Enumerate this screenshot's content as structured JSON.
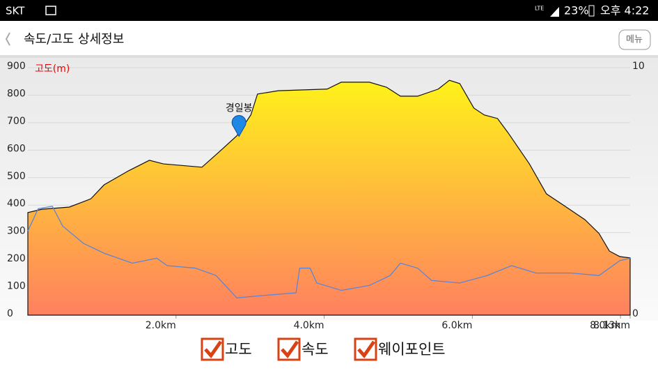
{
  "status_bar": {
    "carrier": "SKT",
    "network": "LTE",
    "battery": "23%",
    "time": "오후 4:22"
  },
  "header": {
    "title": "속도/고도 상세정보",
    "menu": "메뉴"
  },
  "chart_data": {
    "type": "area",
    "ylabel": "고도(m)",
    "xlim": [
      0,
      8.13
    ],
    "xticks": [
      {
        "value": 2,
        "label": "2.0km"
      },
      {
        "value": 4,
        "label": "4.0km"
      },
      {
        "value": 6,
        "label": "6.0km"
      },
      {
        "value": 8,
        "label": "8.0km"
      },
      {
        "value": 8.13,
        "label": "8.13km"
      }
    ],
    "ylim": [
      0,
      900
    ],
    "yticks": [
      0,
      100,
      200,
      300,
      400,
      500,
      600,
      700,
      800,
      900
    ],
    "y2lim": [
      0,
      10
    ],
    "y2ticks": [
      0,
      10
    ],
    "grid": true,
    "series": [
      {
        "name": "고도",
        "type": "area",
        "color": "#fff21a",
        "color2": "#ff8060",
        "x": [
          0,
          0.19,
          0.56,
          0.85,
          1.03,
          1.36,
          1.64,
          1.83,
          2.35,
          2.58,
          2.82,
          3.01,
          3.1,
          3.38,
          4.04,
          4.23,
          4.61,
          4.84,
          5.03,
          5.26,
          5.54,
          5.69,
          5.83,
          6.02,
          6.16,
          6.34,
          6.48,
          6.77,
          7.0,
          7.24,
          7.52,
          7.71,
          7.85,
          7.99,
          8.13
        ],
        "values": [
          373,
          385,
          393,
          423,
          474,
          525,
          563,
          550,
          538,
          593,
          652,
          728,
          804,
          816,
          822,
          847,
          847,
          829,
          796,
          796,
          822,
          854,
          842,
          753,
          728,
          715,
          664,
          550,
          441,
          398,
          347,
          297,
          233,
          213,
          208
        ]
      },
      {
        "name": "속도",
        "type": "line",
        "axis": "y2",
        "color": "#5b86d6",
        "x": [
          0,
          0.14,
          0.33,
          0.47,
          0.75,
          1.03,
          1.41,
          1.74,
          1.88,
          2.26,
          2.54,
          2.82,
          3.2,
          3.62,
          3.67,
          3.81,
          3.9,
          4.23,
          4.61,
          4.89,
          5.03,
          5.26,
          5.45,
          5.83,
          6.2,
          6.53,
          6.86,
          7.33,
          7.71,
          7.99,
          8.13
        ],
        "values": [
          3.4,
          4.3,
          4.4,
          3.6,
          2.9,
          2.5,
          2.1,
          2.3,
          2.0,
          1.9,
          1.6,
          0.7,
          0.8,
          0.9,
          1.9,
          1.9,
          1.3,
          1.0,
          1.2,
          1.6,
          2.1,
          1.9,
          1.4,
          1.3,
          1.6,
          2.0,
          1.7,
          1.7,
          1.6,
          2.2,
          2.3
        ]
      }
    ],
    "waypoints": {
      "name": "웨이포인트",
      "color": "#1e88e5",
      "points": [
        {
          "label": "경일봉",
          "x": 2.85,
          "y": 650
        }
      ]
    }
  }
}
